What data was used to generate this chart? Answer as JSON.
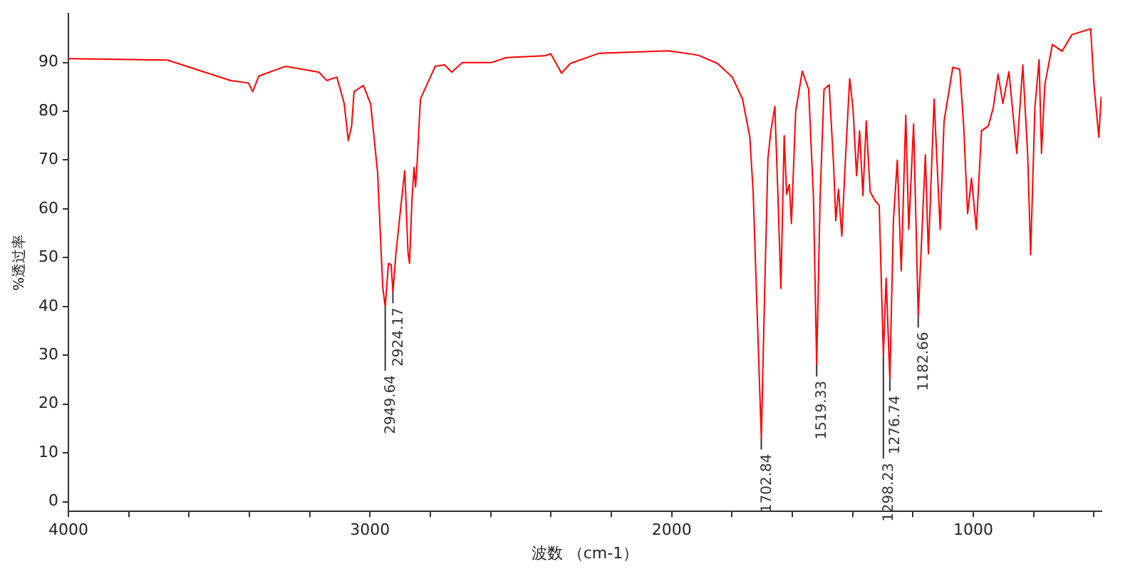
{
  "chart_data": {
    "type": "line",
    "xlabel": "波数 （cm-1）",
    "ylabel": "%透过率",
    "legend": false,
    "grid": false,
    "marker": "none",
    "line_style": "solid",
    "xlim": [
      4000,
      575
    ],
    "ylim": [
      -2,
      100
    ],
    "xticks": [
      4000,
      {
        "value": 3800,
        "label": null
      },
      {
        "value": 3600,
        "label": null
      },
      {
        "value": 3400,
        "label": null
      },
      {
        "value": 3200,
        "label": null
      },
      3000,
      {
        "value": 2800,
        "label": null
      },
      {
        "value": 2600,
        "label": null
      },
      {
        "value": 2400,
        "label": null
      },
      {
        "value": 2200,
        "label": null
      },
      2000,
      {
        "value": 1800,
        "label": null
      },
      {
        "value": 1600,
        "label": null
      },
      {
        "value": 1400,
        "label": null
      },
      {
        "value": 1200,
        "label": null
      },
      1000,
      {
        "value": 800,
        "label": null
      },
      {
        "value": 600,
        "label": null
      }
    ],
    "yticks": [
      0,
      10,
      20,
      30,
      40,
      50,
      60,
      70,
      80,
      90
    ],
    "annotations": [
      {
        "text": "2949.64",
        "x": 2949.64,
        "y": 40
      },
      {
        "text": "2924.17",
        "x": 2924.17,
        "y": 43
      },
      {
        "text": "1702.84",
        "x": 1702.84,
        "y": 13
      },
      {
        "text": "1519.33",
        "x": 1519.33,
        "y": 28
      },
      {
        "text": "1298.23",
        "x": 1298.23,
        "y": 30
      },
      {
        "text": "1276.74",
        "x": 1276.74,
        "y": 25
      },
      {
        "text": "1182.66",
        "x": 1182.66,
        "y": 38
      }
    ],
    "series": [
      {
        "color": "#ff0000",
        "x": [
          4000,
          3672,
          3462,
          3403,
          3389,
          3369,
          3281,
          3169,
          3144,
          3110,
          3086,
          3072,
          3061,
          3053,
          3022,
          2998,
          2975,
          2958,
          2949.64,
          2939,
          2930,
          2924.17,
          2914,
          2898,
          2885,
          2874,
          2869,
          2861,
          2854,
          2849,
          2844,
          2833,
          2784,
          2753,
          2729,
          2694,
          2597,
          2548,
          2418,
          2401,
          2365,
          2336,
          2240,
          2010,
          1912,
          1848,
          1799,
          1765,
          1741,
          1730,
          1717,
          1702.84,
          1692,
          1681,
          1671,
          1658,
          1648,
          1638,
          1627,
          1619,
          1610,
          1603,
          1589,
          1567,
          1546,
          1530,
          1519.33,
          1508,
          1495,
          1478,
          1463,
          1456,
          1447,
          1436,
          1426,
          1410,
          1399,
          1387,
          1377,
          1366,
          1355,
          1342,
          1325,
          1312,
          1298.23,
          1289,
          1276.74,
          1265,
          1252,
          1239,
          1224,
          1214,
          1198,
          1182.66,
          1159,
          1149,
          1130,
          1110,
          1097,
          1068,
          1045,
          1032,
          1019,
          1006,
          990,
          973,
          950,
          934,
          918,
          902,
          882,
          856,
          836,
          820,
          810,
          796,
          782,
          774,
          763,
          738,
          706,
          673,
          611,
          600,
          584,
          576
        ],
        "values": [
          90.8,
          90.5,
          86.3,
          85.8,
          84,
          87.2,
          89.2,
          88,
          86.3,
          87,
          81.7,
          74,
          77,
          84,
          85.3,
          81.5,
          67.5,
          44,
          40,
          48.8,
          48.6,
          43,
          51,
          60.4,
          67.8,
          51,
          48.8,
          62,
          68.5,
          64.5,
          69.3,
          82.5,
          89.2,
          89.5,
          88,
          90,
          90,
          91,
          91.4,
          91.8,
          87.8,
          89.8,
          91.9,
          92.4,
          91.5,
          89.8,
          87,
          82.5,
          74.7,
          63.6,
          39.3,
          13,
          42.5,
          70.3,
          76,
          81,
          63.2,
          43.7,
          75,
          63,
          65,
          57,
          80,
          88.2,
          84.5,
          62.3,
          28,
          62.3,
          84.5,
          85.4,
          68.7,
          57.6,
          64,
          54.4,
          67.7,
          86.7,
          80.7,
          66.8,
          76,
          62.7,
          78,
          63.5,
          61.6,
          60.7,
          30,
          45.8,
          25,
          57.6,
          70,
          47.3,
          79.2,
          55.8,
          77.4,
          38,
          71.1,
          50.8,
          82.5,
          55.8,
          78,
          89,
          88.6,
          77,
          59,
          66.3,
          55.8,
          76,
          77,
          80.7,
          87.6,
          81.6,
          88.1,
          71.4,
          89.5,
          71.4,
          50.6,
          80.7,
          90.6,
          71.4,
          85.4,
          93.7,
          92.3,
          95.7,
          96.9,
          85.4,
          74.7,
          83
        ]
      }
    ]
  }
}
